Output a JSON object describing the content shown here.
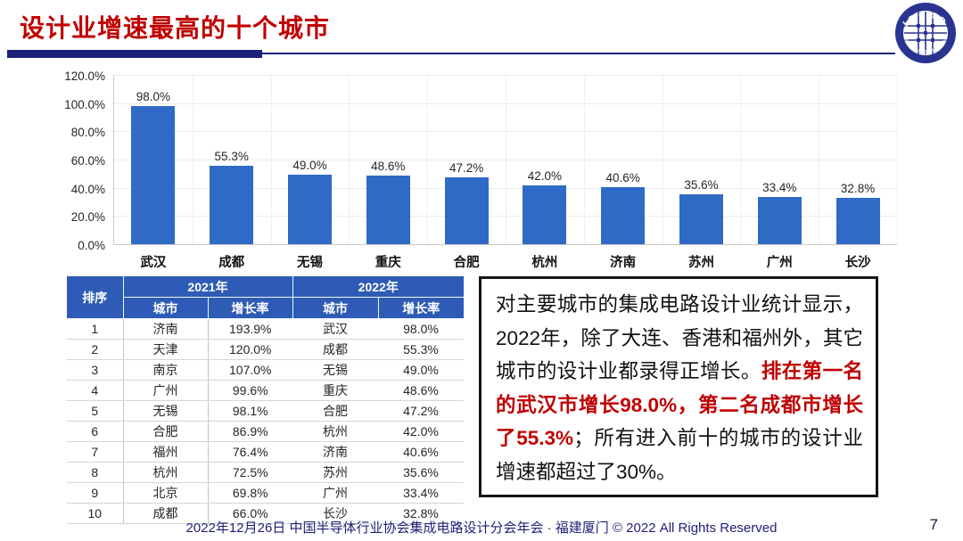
{
  "header": {
    "title": "设计业增速最高的十个城市"
  },
  "logo": {
    "acronym": "IC CAD",
    "ring_text": "中国半导体行业协会集成电路设计分会"
  },
  "chart_data": {
    "type": "bar",
    "title": "",
    "xlabel": "",
    "ylabel": "",
    "categories": [
      "武汉",
      "成都",
      "无锡",
      "重庆",
      "合肥",
      "杭州",
      "济南",
      "苏州",
      "广州",
      "长沙"
    ],
    "values": [
      98.0,
      55.3,
      49.0,
      48.6,
      47.2,
      42.0,
      40.6,
      35.6,
      33.4,
      32.8
    ],
    "labels": [
      "98.0%",
      "55.3%",
      "49.0%",
      "48.6%",
      "47.2%",
      "42.0%",
      "40.6%",
      "35.6%",
      "33.4%",
      "32.8%"
    ],
    "ylim": [
      0,
      120
    ],
    "yticks": [
      {
        "value": 0,
        "label": "0.0%"
      },
      {
        "value": 20,
        "label": "20.0%"
      },
      {
        "value": 40,
        "label": "40.0%"
      },
      {
        "value": 60,
        "label": "60.0%"
      },
      {
        "value": 80,
        "label": "80.0%"
      },
      {
        "value": 100,
        "label": "100.0%"
      },
      {
        "value": 120,
        "label": "120.0%"
      }
    ],
    "grid": true,
    "legend": false,
    "bar_color": "#2F6BC6"
  },
  "table": {
    "headers": {
      "rank": "排序",
      "group2021": "2021年",
      "group2022": "2022年",
      "city": "城市",
      "growth": "增长率"
    },
    "rows": [
      [
        "1",
        "济南",
        "193.9%",
        "武汉",
        "98.0%"
      ],
      [
        "2",
        "天津",
        "120.0%",
        "成都",
        "55.3%"
      ],
      [
        "3",
        "南京",
        "107.0%",
        "无锡",
        "49.0%"
      ],
      [
        "4",
        "广州",
        "99.6%",
        "重庆",
        "48.6%"
      ],
      [
        "5",
        "无锡",
        "98.1%",
        "合肥",
        "47.2%"
      ],
      [
        "6",
        "合肥",
        "86.9%",
        "杭州",
        "42.0%"
      ],
      [
        "7",
        "福州",
        "76.4%",
        "济南",
        "40.6%"
      ],
      [
        "8",
        "杭州",
        "72.5%",
        "苏州",
        "35.6%"
      ],
      [
        "9",
        "北京",
        "69.8%",
        "广州",
        "33.4%"
      ],
      [
        "10",
        "成都",
        "66.0%",
        "长沙",
        "32.8%"
      ]
    ]
  },
  "note": {
    "part1": "对主要城市的集成电路设计业统计显示，2022年，除了大连、香港和福州外，其它城市的设计业都录得正增长。",
    "part2": "排在第一名的武汉市增长98.0%，第二名成都市增长了55.3%",
    "part3": "；所有进入前十的城市的设计业增速都超过了30%。"
  },
  "footer": {
    "text": "2022年12月26日 中国半导体行业协会集成电路设计分会年会 · 福建厦门 © 2022 All Rights Reserved",
    "page": "7"
  },
  "colors": {
    "title_red": "#C00000",
    "bar_blue": "#2F6BC6",
    "table_header_blue": "#2D5BB5",
    "divider_navy": "#1B2378",
    "footer_navy": "#1F1F78"
  }
}
